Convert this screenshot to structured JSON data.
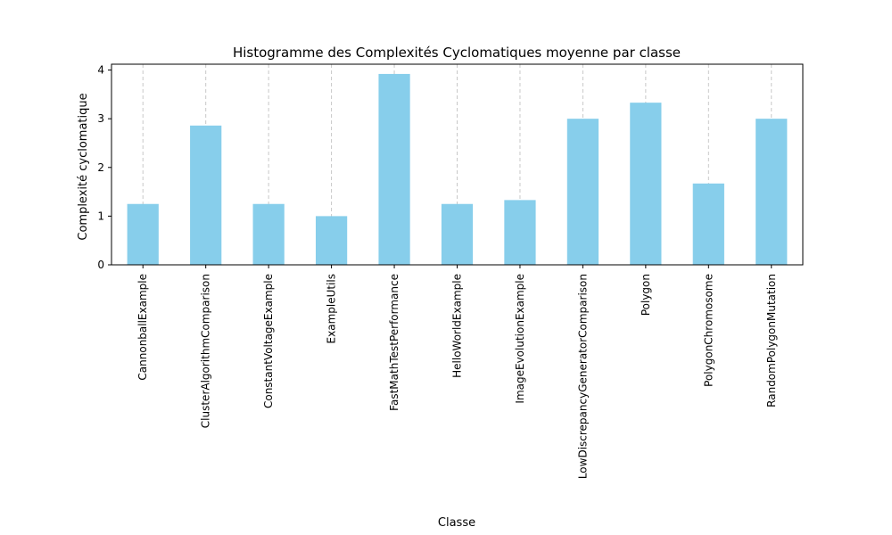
{
  "chart_data": {
    "type": "bar",
    "title": "Histogramme des Complexités Cyclomatiques moyenne par classe",
    "xlabel": "Classe",
    "ylabel": "Complexité cyclomatique",
    "categories": [
      "CannonballExample",
      "ClusterAlgorithmComparison",
      "ConstantVoltageExample",
      "ExampleUtils",
      "FastMathTestPerformance",
      "HelloWorldExample",
      "ImageEvolutionExample",
      "LowDiscrepancyGeneratorComparison",
      "Polygon",
      "PolygonChromosome",
      "RandomPolygonMutation"
    ],
    "values": [
      1.25,
      2.86,
      1.25,
      1.0,
      3.92,
      1.25,
      1.33,
      3.0,
      3.33,
      1.67,
      3.0
    ],
    "ylim": [
      0,
      4.12
    ],
    "yticks": [
      0,
      1,
      2,
      3,
      4
    ],
    "grid": "vertical dashed",
    "legend": "none",
    "colors": {
      "bar": "#87ceeb",
      "grid": "#c8c8c8",
      "axis": "#000000"
    }
  }
}
